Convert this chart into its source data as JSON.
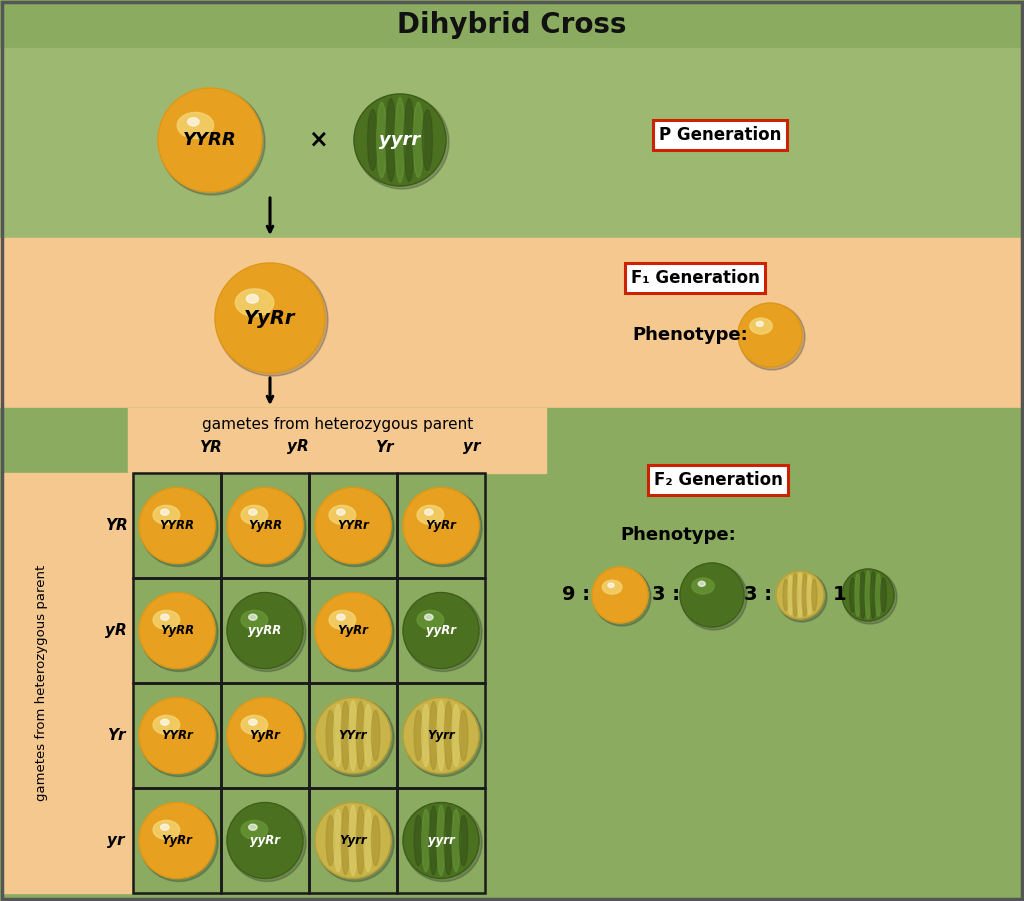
{
  "title": "Dihybrid Cross",
  "bg_title": "#8aab60",
  "bg_p": "#9db870",
  "bg_f1": "#f5c890",
  "bg_f2": "#8aab60",
  "border_color": "#555555",
  "title_fontsize": 20,
  "p_gen_label": "P Generation",
  "f1_gen_label": "F₁ Generation",
  "f2_gen_label": "F₂ Generation",
  "phenotype_label": "Phenotype:",
  "cross_symbol": "×",
  "gametes_label": "gametes from heterozygous parent",
  "row_gametes_label": "gametes from heterozygous parent",
  "col_gametes": [
    "YR",
    "yR",
    "Yr",
    "yr"
  ],
  "row_gametes": [
    "YR",
    "yR",
    "Yr",
    "yr"
  ],
  "grid_genotypes": [
    [
      "YYRR",
      "YyRR",
      "YYRr",
      "YyRr"
    ],
    [
      "YyRR",
      "yyRR",
      "YyRr",
      "yyRr"
    ],
    [
      "YYRr",
      "YyRr",
      "YYrr",
      "Yyrr"
    ],
    [
      "YyRr",
      "yyRr",
      "Yyrr",
      "yyrr"
    ]
  ],
  "grid_colors": [
    [
      "yellow",
      "yellow",
      "yellow",
      "yellow"
    ],
    [
      "yellow",
      "green",
      "yellow",
      "green"
    ],
    [
      "yellow",
      "yellow",
      "pale",
      "pale"
    ],
    [
      "yellow",
      "green",
      "pale",
      "green_wrinkled"
    ]
  ],
  "yellow_main": "#e8a020",
  "yellow_hi": "#f5d878",
  "yellow_mid": "#d49010",
  "green_main": "#4a7020",
  "green_hi": "#6a9838",
  "green_mid": "#355018",
  "pale_main": "#c8b448",
  "pale_hi": "#e0d070",
  "pale_mid": "#a89030",
  "label_box_color": "#cc2200",
  "ratio_values": [
    "9 :",
    "3 :",
    "3 :",
    "1"
  ],
  "ratio_colors": [
    "yellow",
    "green",
    "pale",
    "green_wrinkled"
  ]
}
